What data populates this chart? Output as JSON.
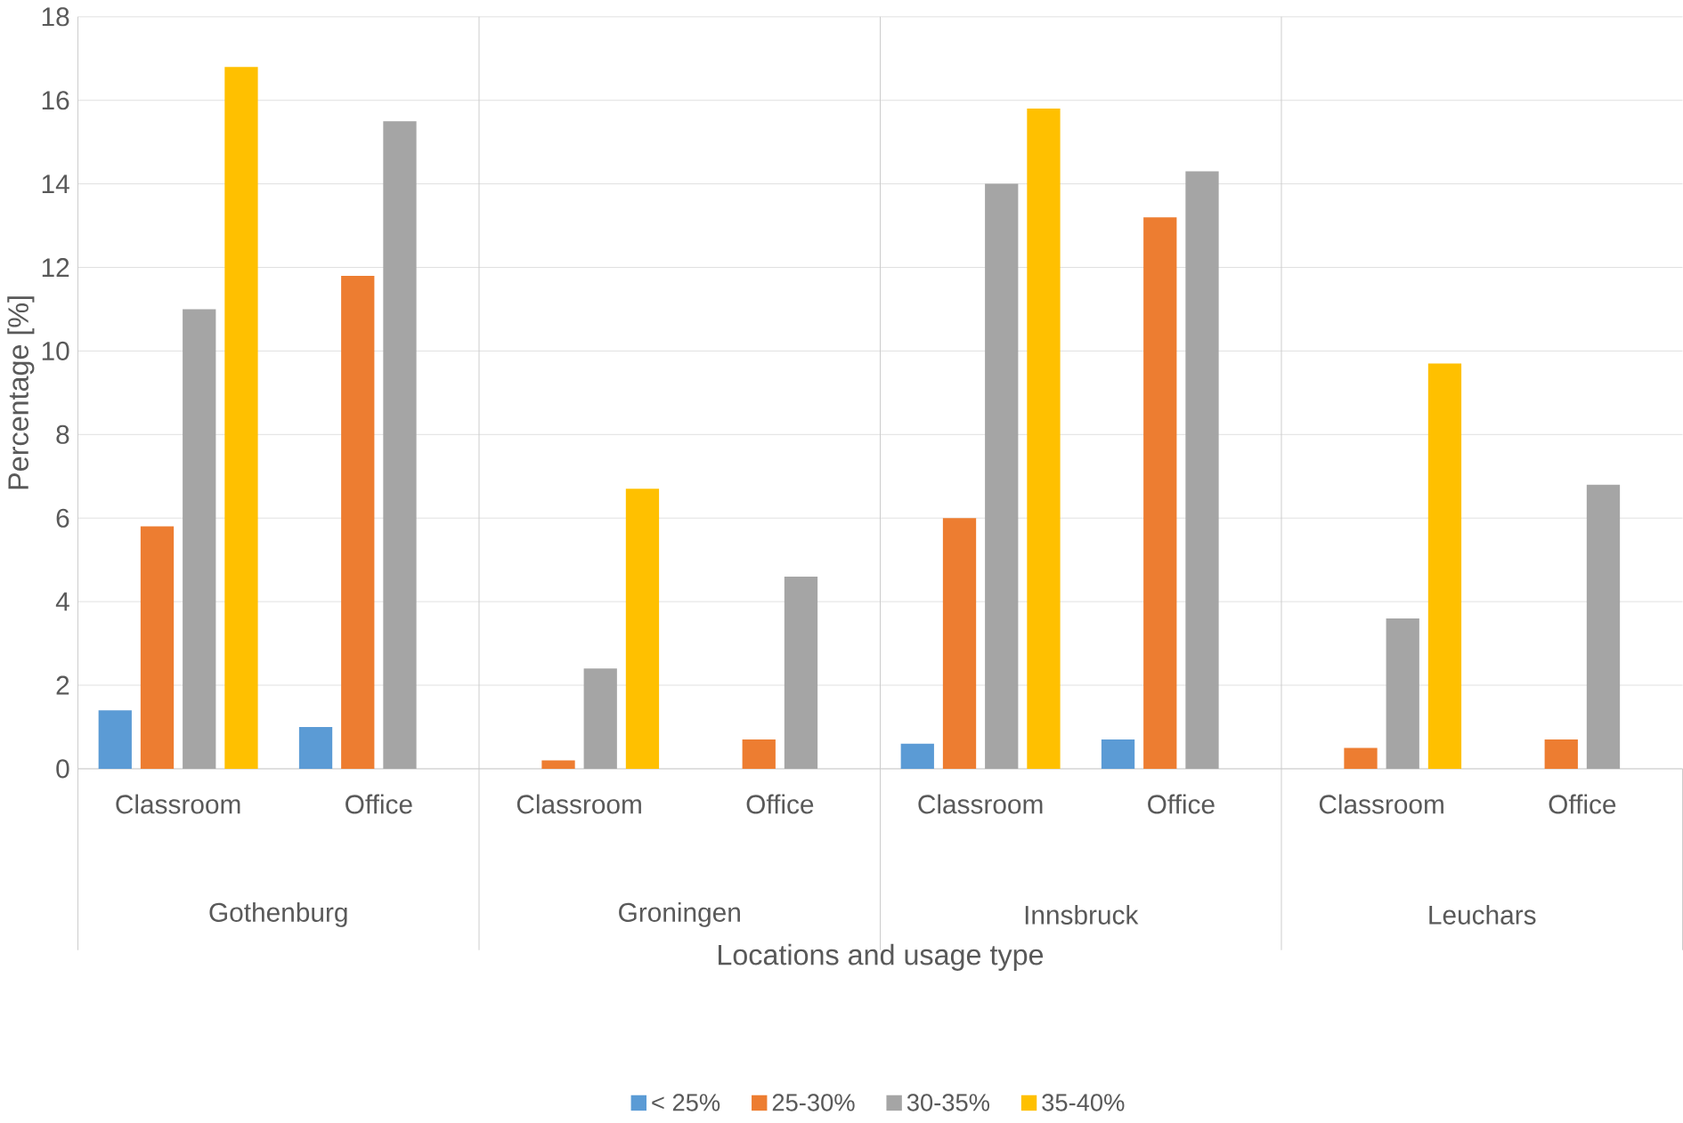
{
  "chart_data": {
    "type": "bar",
    "xlabel": "Locations and usage type",
    "ylabel": "Percentage [%]",
    "categories": [
      "Classroom",
      "Office",
      "Classroom",
      "Office",
      "Classroom",
      "Office",
      "Classroom",
      "Office"
    ],
    "annotations": [
      "Gothenburg",
      "Groningen",
      "Innsbruck",
      "Leuchars"
    ],
    "series": [
      {
        "name": "< 25%",
        "color": "#5b9bd5",
        "values": [
          1.4,
          1.0,
          0,
          0,
          0.6,
          0.7,
          0,
          0
        ]
      },
      {
        "name": "25-30%",
        "color": "#ed7d31",
        "values": [
          5.8,
          11.8,
          0.2,
          0.7,
          6.0,
          13.2,
          0.5,
          0.7
        ]
      },
      {
        "name": "30-35%",
        "color": "#a5a5a5",
        "values": [
          11.0,
          15.5,
          2.4,
          4.6,
          14.0,
          14.3,
          3.6,
          6.8
        ]
      },
      {
        "name": "35-40%",
        "color": "#ffc000",
        "values": [
          16.8,
          0,
          6.7,
          0,
          15.8,
          0,
          9.7,
          0
        ]
      }
    ],
    "ylim": [
      0,
      18
    ],
    "yticks": [
      0,
      2,
      4,
      6,
      8,
      10,
      12,
      14,
      16,
      18
    ],
    "grid": "y",
    "legend": "bottom"
  }
}
